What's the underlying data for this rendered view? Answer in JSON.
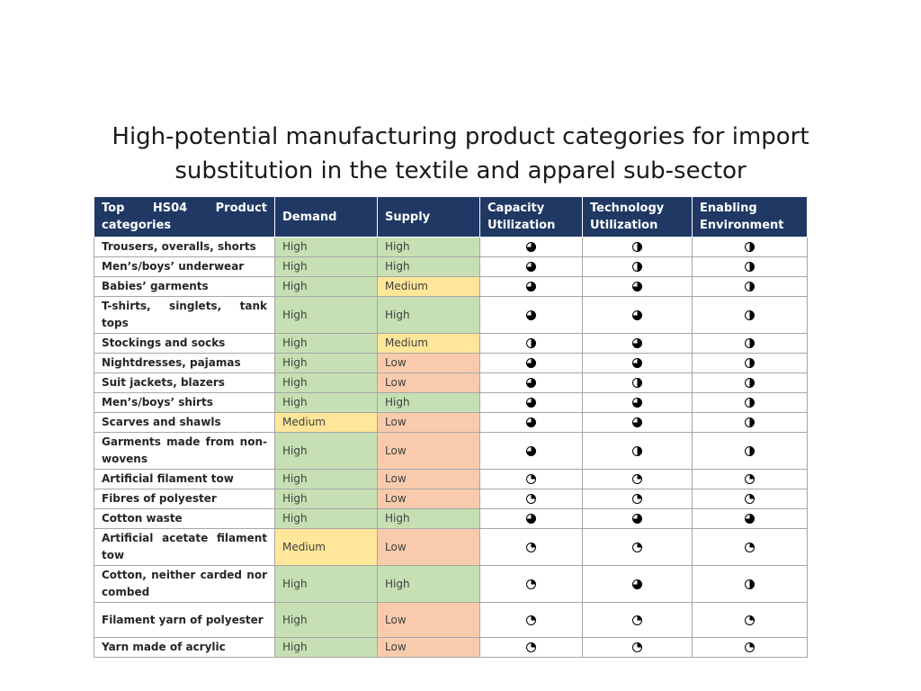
{
  "title": {
    "line1": "High-potential manufacturing product categories for import",
    "line2": "substitution in the textile and apparel sub-sector"
  },
  "table": {
    "headers": [
      "Top HS04 Product categories",
      "Demand",
      "Supply",
      "Capacity Utilization",
      "Technology Utilization",
      "Enabling Environment"
    ],
    "level_colors": {
      "High": "#c6e0b4",
      "Medium": "#ffe699",
      "Low": "#f8cbad"
    },
    "rows": [
      {
        "category": "Trousers, overalls, shorts",
        "demand": "High",
        "supply": "High",
        "capacity": 0.75,
        "technology": 0.5,
        "environment": 0.5
      },
      {
        "category": "Men’s/boys’ underwear",
        "demand": "High",
        "supply": "High",
        "capacity": 0.75,
        "technology": 0.5,
        "environment": 0.5
      },
      {
        "category": "Babies’ garments",
        "demand": "High",
        "supply": "Medium",
        "capacity": 0.75,
        "technology": 0.75,
        "environment": 0.5
      },
      {
        "category": "T-shirts, singlets, tank tops",
        "demand": "High",
        "supply": "High",
        "capacity": 0.75,
        "technology": 0.75,
        "environment": 0.5
      },
      {
        "category": "Stockings and socks",
        "demand": "High",
        "supply": "Medium",
        "capacity": 0.5,
        "technology": 0.75,
        "environment": 0.5
      },
      {
        "category": "Nightdresses, pajamas",
        "demand": "High",
        "supply": "Low",
        "capacity": 0.75,
        "technology": 0.75,
        "environment": 0.5
      },
      {
        "category": "Suit jackets, blazers",
        "demand": "High",
        "supply": "Low",
        "capacity": 0.75,
        "technology": 0.5,
        "environment": 0.5
      },
      {
        "category": "Men’s/boys’ shirts",
        "demand": "High",
        "supply": "High",
        "capacity": 0.75,
        "technology": 0.75,
        "environment": 0.5
      },
      {
        "category": "Scarves and shawls",
        "demand": "Medium",
        "supply": "Low",
        "capacity": 0.75,
        "technology": 0.75,
        "environment": 0.5
      },
      {
        "category": "Garments made from non-wovens",
        "demand": "High",
        "supply": "Low",
        "capacity": 0.75,
        "technology": 0.5,
        "environment": 0.5
      },
      {
        "category": "Artificial filament tow",
        "demand": "High",
        "supply": "Low",
        "capacity": 0.25,
        "technology": 0.25,
        "environment": 0.25
      },
      {
        "category": "Fibres of polyester",
        "demand": "High",
        "supply": "Low",
        "capacity": 0.25,
        "technology": 0.25,
        "environment": 0.25
      },
      {
        "category": "Cotton waste",
        "demand": "High",
        "supply": "High",
        "capacity": 0.75,
        "technology": 0.75,
        "environment": 0.75
      },
      {
        "category": "Artificial acetate filament tow",
        "demand": "Medium",
        "supply": "Low",
        "capacity": 0.25,
        "technology": 0.25,
        "environment": 0.25
      },
      {
        "category": "Cotton, neither carded nor combed",
        "demand": "High",
        "supply": "High",
        "capacity": 0.25,
        "technology": 0.75,
        "environment": 0.5
      },
      {
        "category": "Filament yarn of polyester",
        "demand": "High",
        "supply": "Low",
        "capacity": 0.25,
        "technology": 0.25,
        "environment": 0.25
      },
      {
        "category": "Yarn made of acrylic",
        "demand": "High",
        "supply": "Low",
        "capacity": 0.25,
        "technology": 0.25,
        "environment": 0.25
      }
    ]
  }
}
